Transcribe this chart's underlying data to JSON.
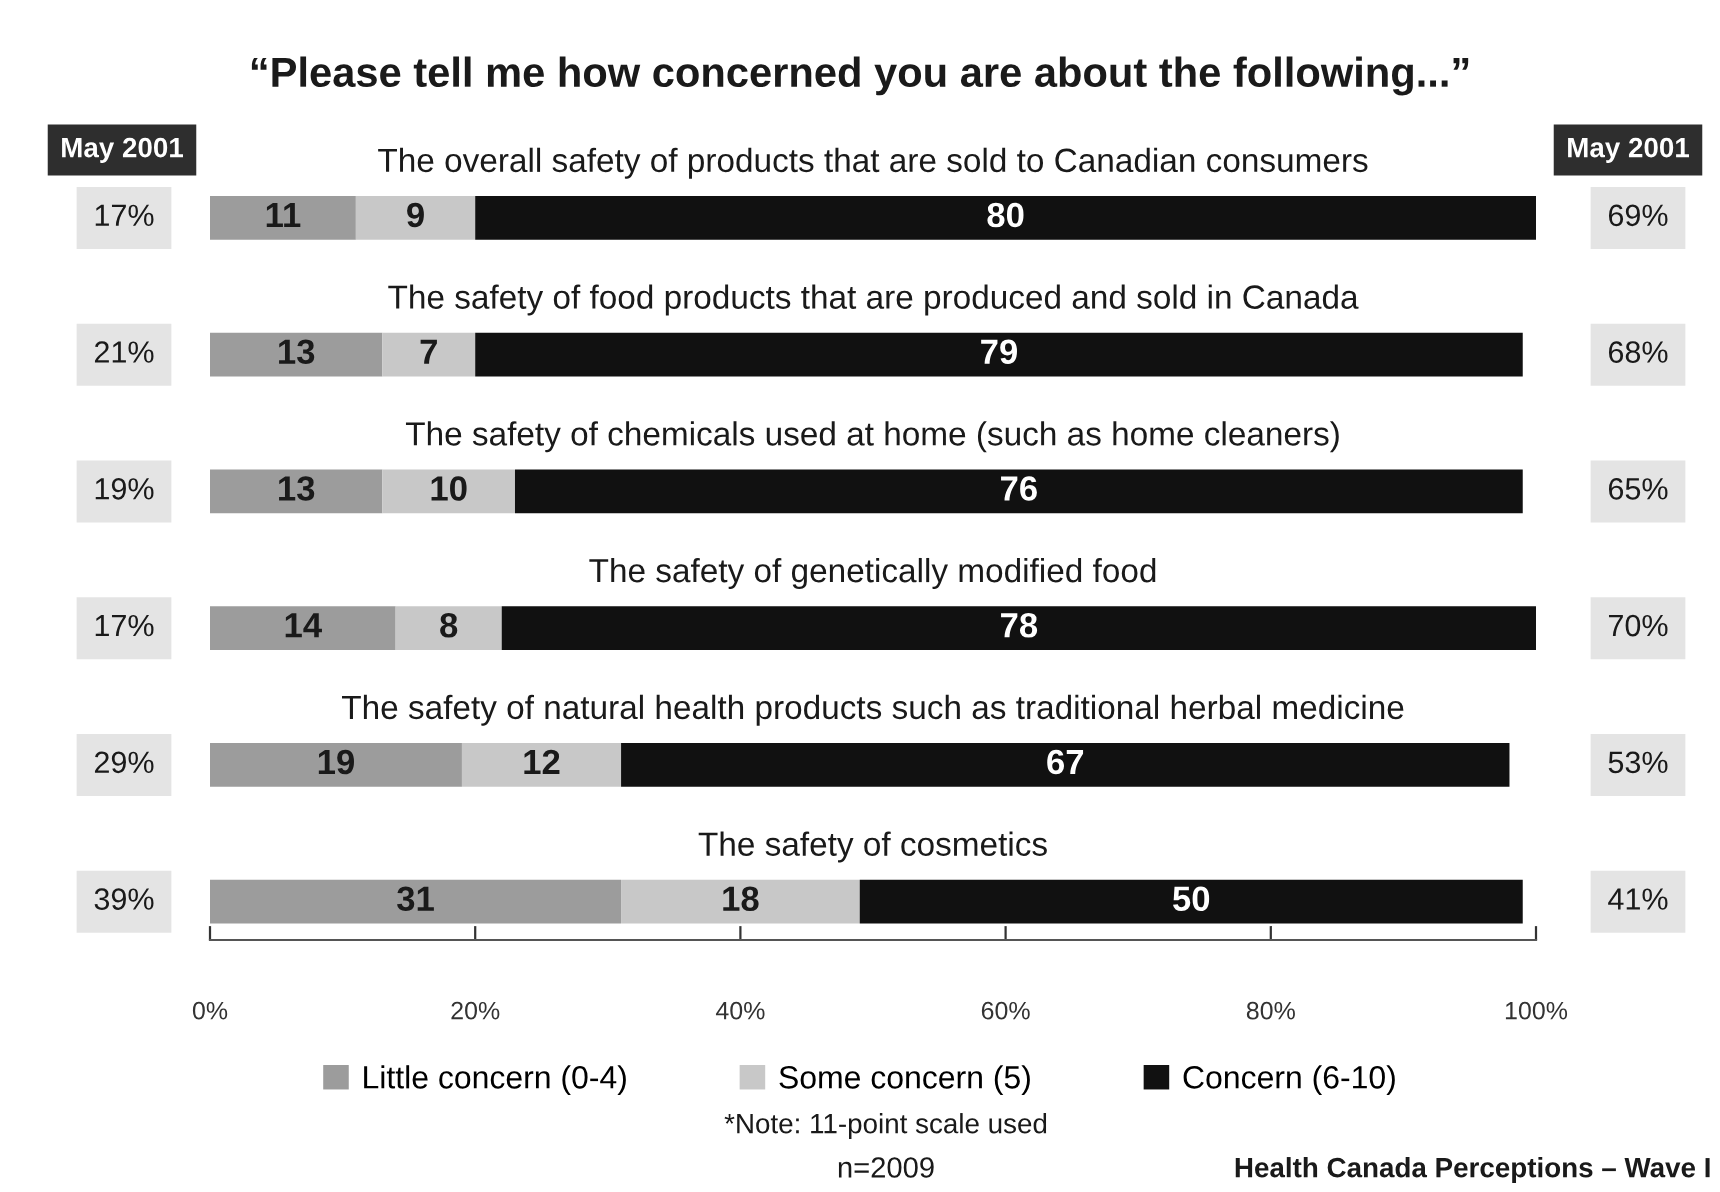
{
  "chart_data": {
    "type": "bar",
    "orientation": "horizontal",
    "stacked": true,
    "title": "“Please tell me how concerned you are about the following...”",
    "categories": [
      "The overall safety of products that are sold to Canadian consumers",
      "The safety of food products that are produced and sold in Canada",
      "The safety of chemicals used at home (such as home cleaners)",
      "The safety of genetically modified food",
      "The safety of natural health products such as traditional herbal medicine",
      "The safety of cosmetics"
    ],
    "series": [
      {
        "name": "Little concern (0-4)",
        "color": "#9c9c9c",
        "values": [
          11,
          13,
          13,
          14,
          19,
          31
        ]
      },
      {
        "name": "Some concern (5)",
        "color": "#c8c8c8",
        "values": [
          9,
          7,
          10,
          8,
          12,
          18
        ]
      },
      {
        "name": "Concern (6-10)",
        "color": "#111111",
        "values": [
          80,
          79,
          76,
          78,
          67,
          50
        ]
      }
    ],
    "xlim": [
      0,
      100
    ],
    "xticks": [
      {
        "value": 0,
        "label": "0%"
      },
      {
        "value": 20,
        "label": "20%"
      },
      {
        "value": 40,
        "label": "40%"
      },
      {
        "value": 60,
        "label": "60%"
      },
      {
        "value": 80,
        "label": "80%"
      },
      {
        "value": 100,
        "label": "100%"
      }
    ],
    "data_labels": true,
    "legend": "bottom",
    "grid": false,
    "annotations": [
      "May 2001",
      "17%",
      "21%",
      "19%",
      "17%",
      "29%",
      "39%",
      "May 2001",
      "69%",
      "68%",
      "65%",
      "70%",
      "53%",
      "41%",
      "*Note: 11-point scale used",
      "n=2009",
      "Health Canada Perceptions – Wave I"
    ]
  }
}
